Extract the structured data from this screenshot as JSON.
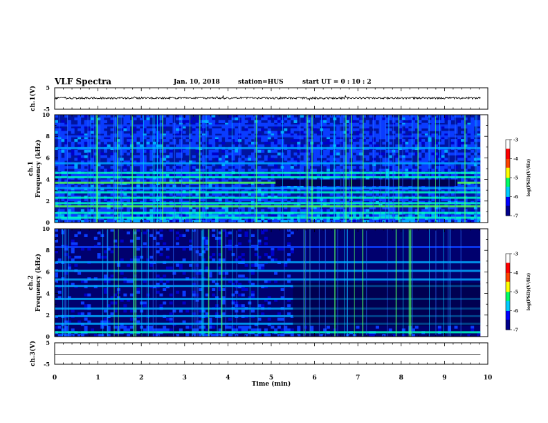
{
  "header": {
    "title": "VLF Spectra",
    "date": "Jan. 10, 2018",
    "station": "station=HUS",
    "start": "start  UT =  0 : 10 : 2"
  },
  "chart_data": [
    {
      "type": "line",
      "name": "channel-1-timeseries",
      "ylabel": "ch.1(V)",
      "ylim": [
        -5,
        5
      ],
      "yticks": [
        5,
        -5
      ],
      "xlim": [
        0,
        10
      ],
      "trace_level_v": 0.2,
      "trace_style": "noisy",
      "color": "#000000"
    },
    {
      "type": "heatmap",
      "name": "channel-1-spectrogram",
      "ylabel": [
        "ch.1",
        "Frequency  (kHz)"
      ],
      "ylim": [
        0,
        10
      ],
      "yticks": [
        0,
        2,
        4,
        6,
        8,
        10
      ],
      "xlim": [
        0,
        9.83
      ],
      "colorbar": {
        "label": "log(PSD)(V²/Hz)",
        "range": [
          -7,
          -3
        ],
        "ticks": [
          -3,
          -4,
          -5,
          -6,
          -7
        ],
        "colors": [
          "#00008b",
          "#0000ff",
          "#00ccff",
          "#00ff66",
          "#ffff00",
          "#ff4400",
          "#ff0000",
          "#ffffff"
        ]
      },
      "quiet_window_min": [
        5.1,
        9.3
      ],
      "quiet_band_khz": [
        3.4,
        4.0
      ]
    },
    {
      "type": "heatmap",
      "name": "channel-2-spectrogram",
      "ylabel": [
        "ch.2",
        "Frequency  (kHz)"
      ],
      "ylim": [
        0,
        10
      ],
      "yticks": [
        0,
        2,
        4,
        6,
        8,
        10
      ],
      "xlim": [
        0,
        9.83
      ],
      "colorbar": {
        "label": "log(PSD)(V²/Hz)",
        "range": [
          -7,
          -3
        ],
        "ticks": [
          -3,
          -4,
          -5,
          -6,
          -7
        ],
        "colors": [
          "#00008b",
          "#0000ff",
          "#00ccff",
          "#00ff66",
          "#ffff00",
          "#ff4400",
          "#ff0000",
          "#ffffff"
        ]
      },
      "quiet_window_min": [
        5.5,
        9.83
      ]
    },
    {
      "type": "line",
      "name": "channel-3-timeseries",
      "ylabel": "ch.3(V)",
      "ylim": [
        -5,
        5
      ],
      "yticks": [
        5,
        -5
      ],
      "xlim": [
        0,
        10
      ],
      "trace_level_v": -0.3,
      "trace_style": "flat",
      "color": "#000000"
    }
  ],
  "xaxis": {
    "label": "Time  (min)",
    "range": [
      0,
      10
    ],
    "ticks": [
      0,
      1,
      2,
      3,
      4,
      5,
      6,
      7,
      8,
      9,
      10
    ]
  }
}
